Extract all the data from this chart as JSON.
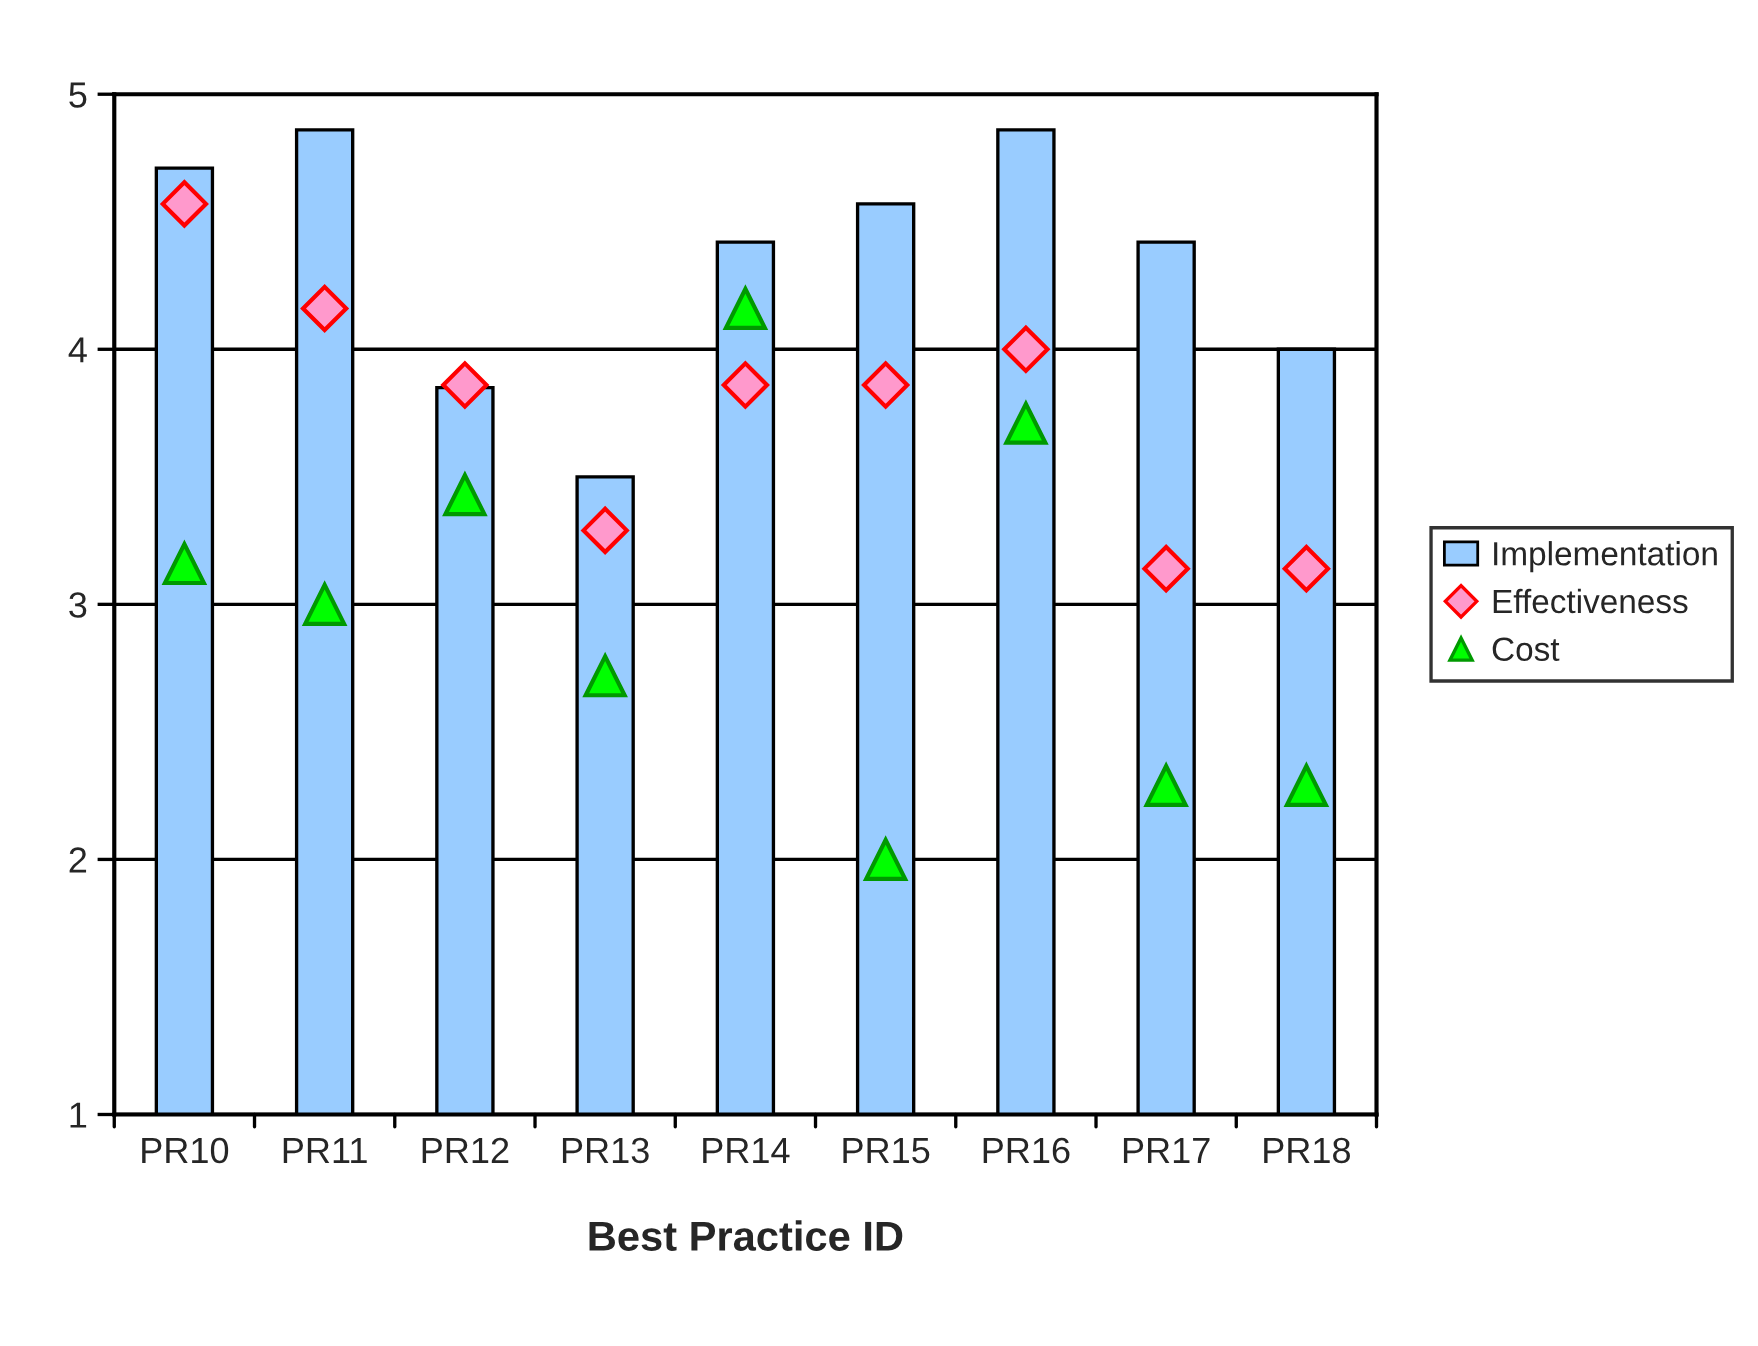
{
  "chart_data": {
    "type": "bar",
    "xlabel": "Best Practice ID",
    "categories": [
      "PR10",
      "PR11",
      "PR12",
      "PR13",
      "PR14",
      "PR15",
      "PR16",
      "PR17",
      "PR18"
    ],
    "series": [
      {
        "name": "Implementation",
        "color": "#99ccff",
        "values": [
          4.71,
          4.86,
          3.85,
          3.5,
          4.42,
          4.57,
          4.86,
          4.42,
          4.0
        ]
      },
      {
        "name": "Effectiveness",
        "type": "scatter",
        "marker": "diamond",
        "color": "#ff99cc",
        "values": [
          4.57,
          4.16,
          3.86,
          3.29,
          3.86,
          3.86,
          4.0,
          3.14,
          3.14
        ]
      },
      {
        "name": "Cost",
        "type": "scatter",
        "marker": "triangle",
        "color": "#00ff00",
        "values": [
          3.16,
          3.0,
          3.43,
          2.72,
          4.16,
          2.0,
          3.71,
          2.29,
          2.29
        ]
      }
    ],
    "ylim": [
      1,
      5
    ],
    "yticks": [
      1,
      2,
      3,
      4,
      5
    ],
    "grid": "y",
    "legend": "right"
  }
}
